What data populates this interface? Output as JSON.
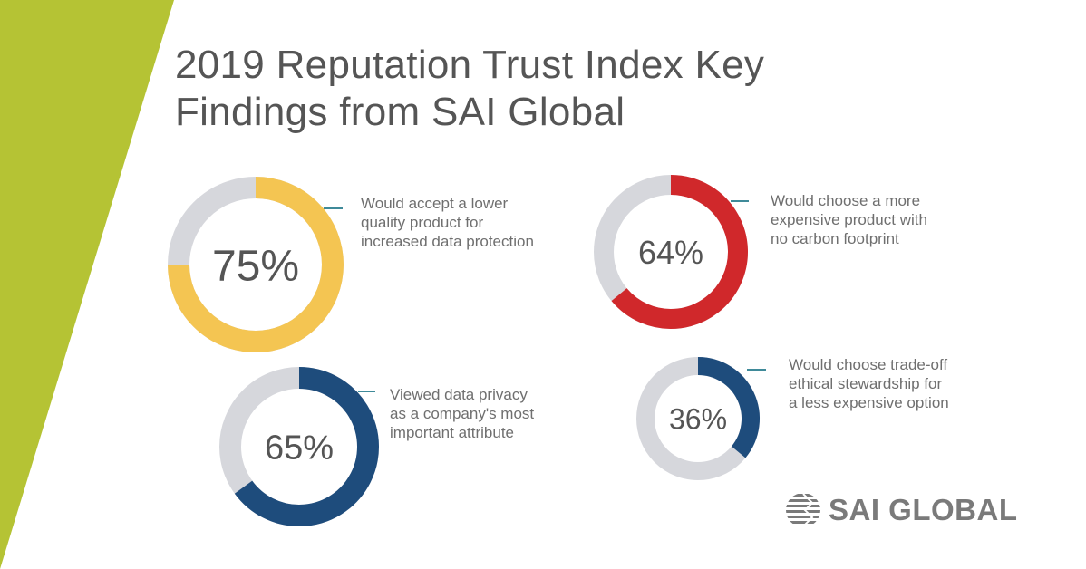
{
  "title_lines": [
    "2019 Reputation Trust Index Key",
    "Findings from SAI Global"
  ],
  "colors": {
    "accent_green": "#B5C334",
    "yellow": "#F4C552",
    "red": "#D0282B",
    "navy": "#1E4C7C",
    "remainder_grey": "#D6D7DC",
    "leader_line": "#3F8A99"
  },
  "chart_data": [
    {
      "type": "pie",
      "variant": "donut",
      "value": 75,
      "center_label": "75%",
      "color": "#F4C552",
      "label_lines": [
        "Would accept a lower",
        "quality product for",
        "increased data protection"
      ]
    },
    {
      "type": "pie",
      "variant": "donut",
      "value": 64,
      "center_label": "64%",
      "color": "#D0282B",
      "label_lines": [
        "Would choose a more",
        "expensive product with",
        "no carbon footprint"
      ]
    },
    {
      "type": "pie",
      "variant": "donut",
      "value": 65,
      "center_label": "65%",
      "color": "#1E4C7C",
      "label_lines": [
        "Viewed data privacy",
        "as a company's most",
        "important attribute"
      ]
    },
    {
      "type": "pie",
      "variant": "donut",
      "value": 36,
      "center_label": "36%",
      "color": "#1E4C7C",
      "label_lines": [
        "Would choose trade-off",
        "ethical stewardship for",
        "a less expensive option"
      ]
    }
  ],
  "logo": {
    "text": "SAI GLOBAL",
    "icon": "globe-icon"
  }
}
